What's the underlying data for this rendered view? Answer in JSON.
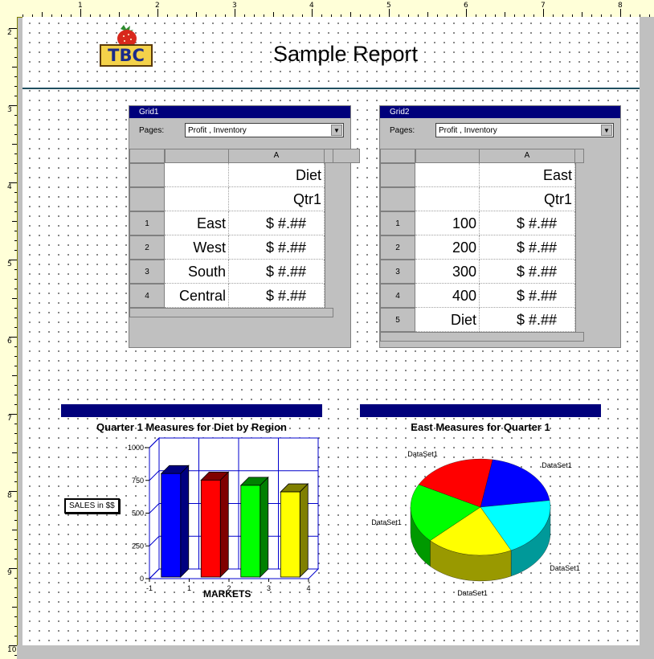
{
  "ruler": {
    "top_numbers": [
      "1",
      "2",
      "3",
      "4",
      "5",
      "6",
      "7",
      "8"
    ],
    "left_numbers": [
      "2",
      "3",
      "4",
      "5",
      "6",
      "7",
      "8",
      "9",
      "10"
    ]
  },
  "report": {
    "title": "Sample Report",
    "logo_text": "TBC"
  },
  "grid1": {
    "title": "Grid1",
    "pages_label": "Pages:",
    "pages_value": "Profit , Inventory",
    "col_header": "A",
    "header_rows": [
      "Diet",
      "Qtr1"
    ],
    "rows": [
      {
        "num": "1",
        "label": "East",
        "value": "$ #.##"
      },
      {
        "num": "2",
        "label": "West",
        "value": "$ #.##"
      },
      {
        "num": "3",
        "label": "South",
        "value": "$ #.##"
      },
      {
        "num": "4",
        "label": "Central",
        "value": "$ #.##"
      }
    ]
  },
  "grid2": {
    "title": "Grid2",
    "pages_label": "Pages:",
    "pages_value": "Profit , Inventory",
    "col_header": "A",
    "header_rows": [
      "East",
      "Qtr1"
    ],
    "rows": [
      {
        "num": "1",
        "label": "100",
        "value": "$ #.##"
      },
      {
        "num": "2",
        "label": "200",
        "value": "$ #.##"
      },
      {
        "num": "3",
        "label": "300",
        "value": "$ #.##"
      },
      {
        "num": "4",
        "label": "400",
        "value": "$ #.##"
      },
      {
        "num": "5",
        "label": "Diet",
        "value": "$ #.##"
      }
    ]
  },
  "chart_data": [
    {
      "type": "bar",
      "title": "Quarter 1 Measures for Diet by Region",
      "xlabel": "MARKETS",
      "ylabel": "SALES in $$",
      "x_ticks": [
        "-1",
        "1",
        "2",
        "3",
        "4"
      ],
      "y_ticks": [
        "0",
        "250",
        "500",
        "750",
        "1000"
      ],
      "ylim": [
        0,
        1000
      ],
      "values": [
        790,
        740,
        700,
        650
      ],
      "colors": [
        "#0000ff",
        "#ff0000",
        "#00ff00",
        "#ffff00"
      ],
      "grid": true
    },
    {
      "type": "pie",
      "title": "East Measures for Quarter 1",
      "labels": [
        "DataSet1",
        "DataSet1",
        "DataSet1",
        "DataSet1",
        "DataSet1"
      ],
      "values": [
        20,
        20,
        20,
        20,
        20
      ],
      "colors": [
        "#0000ff",
        "#00ffff",
        "#ffff00",
        "#00ff00",
        "#ff0000"
      ]
    }
  ]
}
